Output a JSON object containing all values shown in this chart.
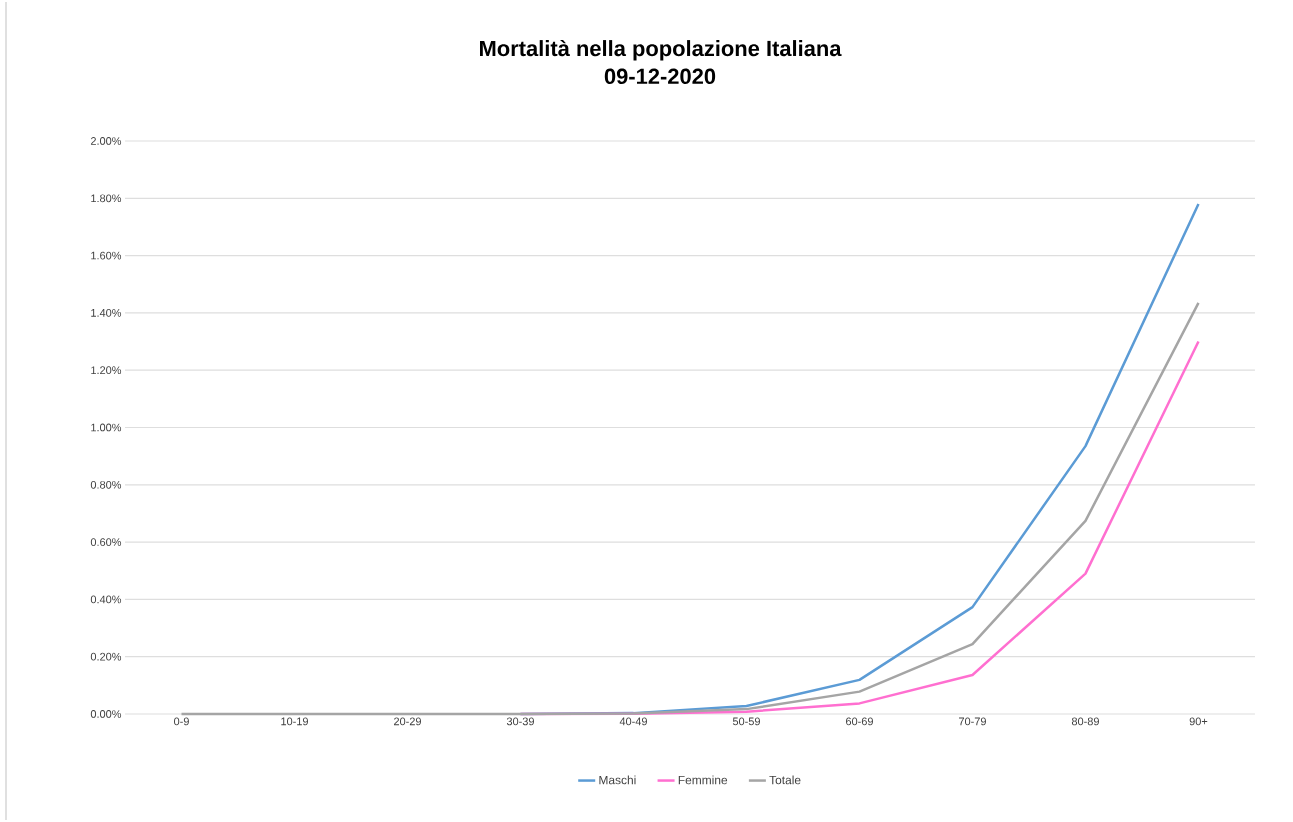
{
  "chart_data": {
    "type": "line",
    "title": "Mortalità nella popolazione Italiana",
    "subtitle": "09-12-2020",
    "categories": [
      "0-9",
      "10-19",
      "20-29",
      "30-39",
      "40-49",
      "50-59",
      "60-69",
      "70-79",
      "80-89",
      "90+"
    ],
    "series": [
      {
        "name": "Maschi",
        "color": "#5b9bd5",
        "values": [
          null,
          null,
          null,
          0,
          0.003,
          0.028,
          0.119,
          0.373,
          0.935,
          1.78
        ]
      },
      {
        "name": "Femmine",
        "color": "#ff6fd0",
        "values": [
          null,
          null,
          null,
          0,
          0.001,
          0.008,
          0.037,
          0.136,
          0.49,
          1.3
        ]
      },
      {
        "name": "Totale",
        "color": "#a5a5a5",
        "values": [
          0,
          0,
          0,
          0,
          0.002,
          0.017,
          0.078,
          0.244,
          0.674,
          1.435
        ]
      }
    ],
    "ylim": [
      0,
      2
    ],
    "yticks": [
      {
        "value": 0,
        "label": "0.00%"
      },
      {
        "value": 0.2,
        "label": "0.20%"
      },
      {
        "value": 0.4,
        "label": "0.40%"
      },
      {
        "value": 0.6,
        "label": "0.60%"
      },
      {
        "value": 0.8,
        "label": "0.80%"
      },
      {
        "value": 1,
        "label": "1.00%"
      },
      {
        "value": 1.2,
        "label": "1.20%"
      },
      {
        "value": 1.4,
        "label": "1.40%"
      },
      {
        "value": 1.6,
        "label": "1.60%"
      },
      {
        "value": 1.8,
        "label": "1.80%"
      },
      {
        "value": 2,
        "label": "2.00%"
      }
    ],
    "grid": "y",
    "legend": "bottom",
    "marker": "none",
    "line_style": "solid"
  }
}
